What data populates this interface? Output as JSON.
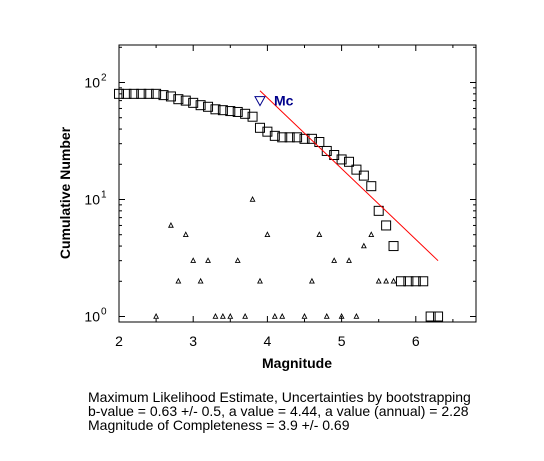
{
  "chart_data": {
    "type": "scatter",
    "xlabel": "Magnitude",
    "ylabel": "Cumulative Number",
    "xlim": [
      2,
      6.8
    ],
    "ylim": [
      0.8,
      200
    ],
    "y_scale": "log",
    "x_ticks": [
      2,
      3,
      4,
      5,
      6
    ],
    "x_tick_labels": [
      "2",
      "3",
      "4",
      "5",
      "6"
    ],
    "y_ticks": [
      1,
      10,
      100
    ],
    "y_tick_labels": [
      {
        "base": "10",
        "exp": "0"
      },
      {
        "base": "10",
        "exp": "1"
      },
      {
        "base": "10",
        "exp": "2"
      }
    ],
    "grid": false,
    "series": [
      {
        "marker": "square",
        "x": [
          2.0,
          2.1,
          2.2,
          2.3,
          2.4,
          2.5,
          2.6,
          2.7,
          2.8,
          2.9,
          3.0,
          3.1,
          3.2,
          3.3,
          3.4,
          3.5,
          3.6,
          3.7,
          3.8,
          3.9,
          4.0,
          4.1,
          4.2,
          4.3,
          4.4,
          4.5,
          4.6,
          4.7,
          4.8,
          4.9,
          5.0,
          5.1,
          5.2,
          5.3,
          5.4,
          5.5,
          5.6,
          5.7,
          5.8,
          5.9,
          6.0,
          6.1,
          6.2,
          6.3
        ],
        "y": [
          80,
          80,
          80,
          80,
          80,
          80,
          78,
          76,
          72,
          70,
          67,
          64,
          62,
          59,
          58,
          57,
          56,
          54,
          51,
          41,
          38,
          35,
          34,
          34,
          34,
          33,
          33,
          31,
          26,
          24,
          22,
          21,
          18,
          16,
          13,
          8,
          6,
          4,
          2,
          2,
          2,
          2,
          1,
          1
        ]
      },
      {
        "marker": "triangle",
        "x": [
          2.5,
          2.7,
          2.8,
          2.9,
          3.0,
          3.1,
          3.2,
          3.3,
          3.4,
          3.5,
          3.6,
          3.7,
          3.8,
          3.9,
          4.0,
          4.1,
          4.2,
          4.5,
          4.6,
          4.7,
          4.8,
          4.9,
          5.0,
          5.1,
          5.2,
          5.3,
          5.4,
          5.5,
          5.6,
          5.7
        ],
        "y": [
          1,
          6,
          2,
          5,
          3,
          2,
          3,
          1,
          1,
          1,
          3,
          1,
          10,
          2,
          5,
          1,
          1,
          1,
          2,
          5,
          1,
          3,
          1,
          3,
          1,
          4,
          5,
          2,
          2,
          2
        ]
      }
    ],
    "fit_line": {
      "x": [
        3.9,
        6.3
      ],
      "y": [
        85,
        3
      ],
      "color": "#ff0000"
    },
    "mc_marker": {
      "x": 3.9,
      "y": 70,
      "label": "Mc",
      "color": "#00008b"
    }
  },
  "caption": {
    "line1": "Maximum Likelihood Estimate, Uncertainties by bootstrapping",
    "line2": "b-value = 0.63 +/- 0.5,  a value = 4.44,  a value (annual) = 2.28",
    "line3": "Magnitude of Completeness = 3.9 +/- 0.69"
  }
}
